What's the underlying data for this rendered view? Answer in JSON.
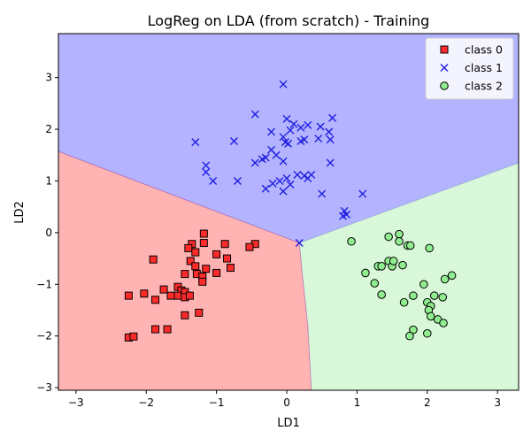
{
  "chart_data": {
    "type": "scatter",
    "title": "LogReg on LDA (from scratch) - Training",
    "xlabel": "LD1",
    "ylabel": "LD2",
    "xlim": [
      -3.25,
      3.3
    ],
    "ylim": [
      -3.05,
      3.85
    ],
    "xticks": [
      -3,
      -2,
      -1,
      0,
      1,
      2,
      3
    ],
    "yticks": [
      -3,
      -2,
      -1,
      0,
      1,
      2,
      3
    ],
    "xtick_labels": [
      "−3",
      "−2",
      "−1",
      "0",
      "1",
      "2",
      "3"
    ],
    "ytick_labels": [
      "−3",
      "−2",
      "−1",
      "0",
      "1",
      "2",
      "3"
    ],
    "grid": false,
    "legend_placement": "top-right",
    "decision_regions": [
      {
        "class": "class 0",
        "color": "#ffb3b3",
        "polygon": [
          [
            -3.25,
            1.57
          ],
          [
            0.18,
            -0.2
          ],
          [
            0.22,
            -0.8
          ],
          [
            0.3,
            -1.8
          ],
          [
            0.35,
            -3.05
          ],
          [
            -3.25,
            -3.05
          ]
        ]
      },
      {
        "class": "class 1",
        "color": "#b3b3ff",
        "polygon": [
          [
            -3.25,
            3.85
          ],
          [
            3.3,
            3.85
          ],
          [
            3.3,
            1.35
          ],
          [
            0.18,
            -0.2
          ],
          [
            -3.25,
            1.57
          ]
        ]
      },
      {
        "class": "class 2",
        "color": "#d9f7d9",
        "polygon": [
          [
            0.18,
            -0.2
          ],
          [
            3.3,
            1.35
          ],
          [
            3.3,
            -3.05
          ],
          [
            0.35,
            -3.05
          ],
          [
            0.3,
            -1.8
          ],
          [
            0.22,
            -0.8
          ]
        ]
      }
    ],
    "series": [
      {
        "name": "class 0",
        "marker": "square",
        "color": "#ff2a2a",
        "edge": "#000000",
        "points": [
          [
            -1.18,
            -0.02
          ],
          [
            -1.18,
            -0.2
          ],
          [
            -1.35,
            -0.22
          ],
          [
            -0.88,
            -0.22
          ],
          [
            -0.45,
            -0.22
          ],
          [
            -0.85,
            -0.5
          ],
          [
            -0.53,
            -0.28
          ],
          [
            -1.4,
            -0.3
          ],
          [
            -1.3,
            -0.38
          ],
          [
            -1.0,
            -0.42
          ],
          [
            -1.37,
            -0.55
          ],
          [
            -1.9,
            -0.52
          ],
          [
            -1.3,
            -0.65
          ],
          [
            -1.15,
            -0.7
          ],
          [
            -0.8,
            -0.68
          ],
          [
            -1.45,
            -0.8
          ],
          [
            -1.28,
            -0.8
          ],
          [
            -1.0,
            -0.78
          ],
          [
            -1.2,
            -0.85
          ],
          [
            -1.2,
            -0.95
          ],
          [
            -1.55,
            -1.05
          ],
          [
            -1.75,
            -1.1
          ],
          [
            -1.5,
            -1.12
          ],
          [
            -1.45,
            -1.15
          ],
          [
            -2.25,
            -1.22
          ],
          [
            -2.03,
            -1.18
          ],
          [
            -1.65,
            -1.22
          ],
          [
            -1.55,
            -1.22
          ],
          [
            -1.45,
            -1.25
          ],
          [
            -1.38,
            -1.22
          ],
          [
            -1.87,
            -1.3
          ],
          [
            -1.45,
            -1.6
          ],
          [
            -1.25,
            -1.55
          ],
          [
            -1.87,
            -1.87
          ],
          [
            -1.7,
            -1.87
          ],
          [
            -2.25,
            -2.03
          ],
          [
            -2.18,
            -2.01
          ]
        ]
      },
      {
        "name": "class 1",
        "marker": "x",
        "color": "#1f1fe0",
        "points": [
          [
            -0.05,
            2.87
          ],
          [
            -0.45,
            2.29
          ],
          [
            0.0,
            2.2
          ],
          [
            0.65,
            2.22
          ],
          [
            -0.75,
            1.77
          ],
          [
            -1.3,
            1.75
          ],
          [
            0.1,
            2.1
          ],
          [
            0.3,
            2.08
          ],
          [
            0.2,
            2.03
          ],
          [
            0.05,
            1.98
          ],
          [
            -0.22,
            1.95
          ],
          [
            -0.05,
            1.85
          ],
          [
            0.48,
            2.05
          ],
          [
            0.6,
            1.95
          ],
          [
            -0.02,
            1.75
          ],
          [
            0.02,
            1.72
          ],
          [
            0.2,
            1.77
          ],
          [
            0.25,
            1.8
          ],
          [
            0.45,
            1.82
          ],
          [
            0.62,
            1.8
          ],
          [
            -0.15,
            1.5
          ],
          [
            -0.3,
            1.45
          ],
          [
            -0.35,
            1.42
          ],
          [
            -0.45,
            1.35
          ],
          [
            -0.05,
            1.38
          ],
          [
            -0.22,
            1.6
          ],
          [
            0.62,
            1.35
          ],
          [
            -1.15,
            1.3
          ],
          [
            -1.15,
            1.17
          ],
          [
            -1.05,
            1.0
          ],
          [
            -0.7,
            1.0
          ],
          [
            0.15,
            1.12
          ],
          [
            0.25,
            1.1
          ],
          [
            0.3,
            1.05
          ],
          [
            0.35,
            1.12
          ],
          [
            0.0,
            1.05
          ],
          [
            -0.1,
            1.0
          ],
          [
            -0.2,
            0.95
          ],
          [
            0.05,
            0.93
          ],
          [
            -0.3,
            0.85
          ],
          [
            -0.05,
            0.8
          ],
          [
            0.5,
            0.75
          ],
          [
            1.08,
            0.75
          ],
          [
            0.82,
            0.42
          ],
          [
            0.85,
            0.35
          ],
          [
            0.8,
            0.32
          ],
          [
            0.18,
            -0.2
          ]
        ]
      },
      {
        "name": "class 2",
        "marker": "circle",
        "color": "#90ee90",
        "edge": "#000000",
        "points": [
          [
            0.92,
            -0.17
          ],
          [
            1.45,
            -0.08
          ],
          [
            1.6,
            -0.03
          ],
          [
            1.6,
            -0.17
          ],
          [
            1.72,
            -0.25
          ],
          [
            1.76,
            -0.25
          ],
          [
            2.03,
            -0.3
          ],
          [
            1.12,
            -0.78
          ],
          [
            1.3,
            -0.65
          ],
          [
            1.35,
            -0.65
          ],
          [
            1.45,
            -0.55
          ],
          [
            1.5,
            -0.65
          ],
          [
            1.52,
            -0.55
          ],
          [
            1.65,
            -0.63
          ],
          [
            1.25,
            -0.98
          ],
          [
            1.35,
            -1.2
          ],
          [
            1.8,
            -1.22
          ],
          [
            1.67,
            -1.35
          ],
          [
            2.35,
            -0.83
          ],
          [
            2.25,
            -0.9
          ],
          [
            1.95,
            -1.0
          ],
          [
            2.0,
            -1.35
          ],
          [
            2.1,
            -1.22
          ],
          [
            2.22,
            -1.25
          ],
          [
            2.05,
            -1.42
          ],
          [
            2.02,
            -1.5
          ],
          [
            2.05,
            -1.62
          ],
          [
            2.15,
            -1.68
          ],
          [
            2.23,
            -1.75
          ],
          [
            1.8,
            -1.88
          ],
          [
            1.75,
            -2.0
          ],
          [
            2.0,
            -1.95
          ]
        ]
      }
    ]
  }
}
